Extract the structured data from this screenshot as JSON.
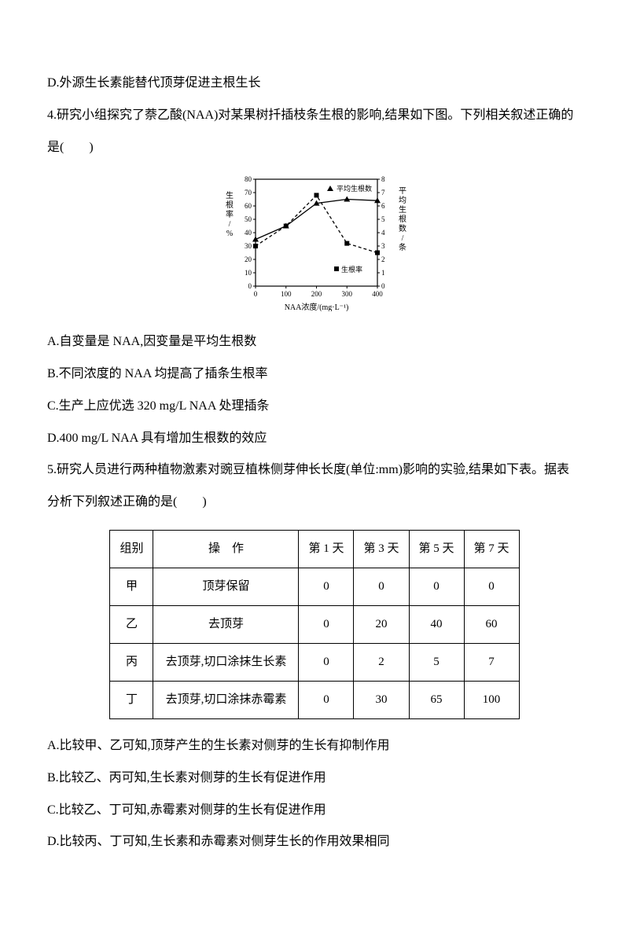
{
  "q3_option_d": "D.外源生长素能替代顶芽促进主根生长",
  "q4_stem_l1": "4.研究小组探究了萘乙酸(NAA)对某果树扦插枝条生根的影响,结果如下图。下列相关叙述正确的",
  "q4_stem_l2": "是(　　)",
  "q4_chart": {
    "y_left_label": "生根率/%",
    "y_right_label": "平均生根数/条",
    "x_label": "NAA浓度/(mg·L⁻¹)",
    "x_ticks": [
      "0",
      "100",
      "200",
      "300",
      "400"
    ],
    "y_left_ticks": [
      "0",
      "10",
      "20",
      "30",
      "40",
      "50",
      "60",
      "70",
      "80"
    ],
    "y_right_ticks": [
      "0",
      "1",
      "2",
      "3",
      "4",
      "5",
      "6",
      "7",
      "8"
    ],
    "legend_left": "生根率",
    "legend_right": "平均生根数",
    "rate": [
      30,
      45,
      68,
      32,
      25
    ],
    "count": [
      3.5,
      4.5,
      6.2,
      6.5,
      6.4
    ],
    "line_color": "#000000",
    "axis_color": "#000000",
    "bg": "#ffffff"
  },
  "q4_option_a": "A.自变量是 NAA,因变量是平均生根数",
  "q4_option_b": "B.不同浓度的 NAA 均提高了插条生根率",
  "q4_option_c": "C.生产上应优选 320 mg/L NAA 处理插条",
  "q4_option_d": "D.400 mg/L NAA 具有增加生根数的效应",
  "q5_stem_l1": "5.研究人员进行两种植物激素对豌豆植株侧芽伸长长度(单位:mm)影响的实验,结果如下表。据表",
  "q5_stem_l2": "分析下列叙述正确的是(　　)",
  "q5_table": {
    "headers": [
      "组别",
      "操　作",
      "第 1 天",
      "第 3 天",
      "第 5 天",
      "第 7 天"
    ],
    "rows": [
      [
        "甲",
        "顶芽保留",
        "0",
        "0",
        "0",
        "0"
      ],
      [
        "乙",
        "去顶芽",
        "0",
        "20",
        "40",
        "60"
      ],
      [
        "丙",
        "去顶芽,切口涂抹生长素",
        "0",
        "2",
        "5",
        "7"
      ],
      [
        "丁",
        "去顶芽,切口涂抹赤霉素",
        "0",
        "30",
        "65",
        "100"
      ]
    ]
  },
  "q5_option_a": "A.比较甲、乙可知,顶芽产生的生长素对侧芽的生长有抑制作用",
  "q5_option_b": "B.比较乙、丙可知,生长素对侧芽的生长有促进作用",
  "q5_option_c": "C.比较乙、丁可知,赤霉素对侧芽的生长有促进作用",
  "q5_option_d": "D.比较丙、丁可知,生长素和赤霉素对侧芽生长的作用效果相同"
}
